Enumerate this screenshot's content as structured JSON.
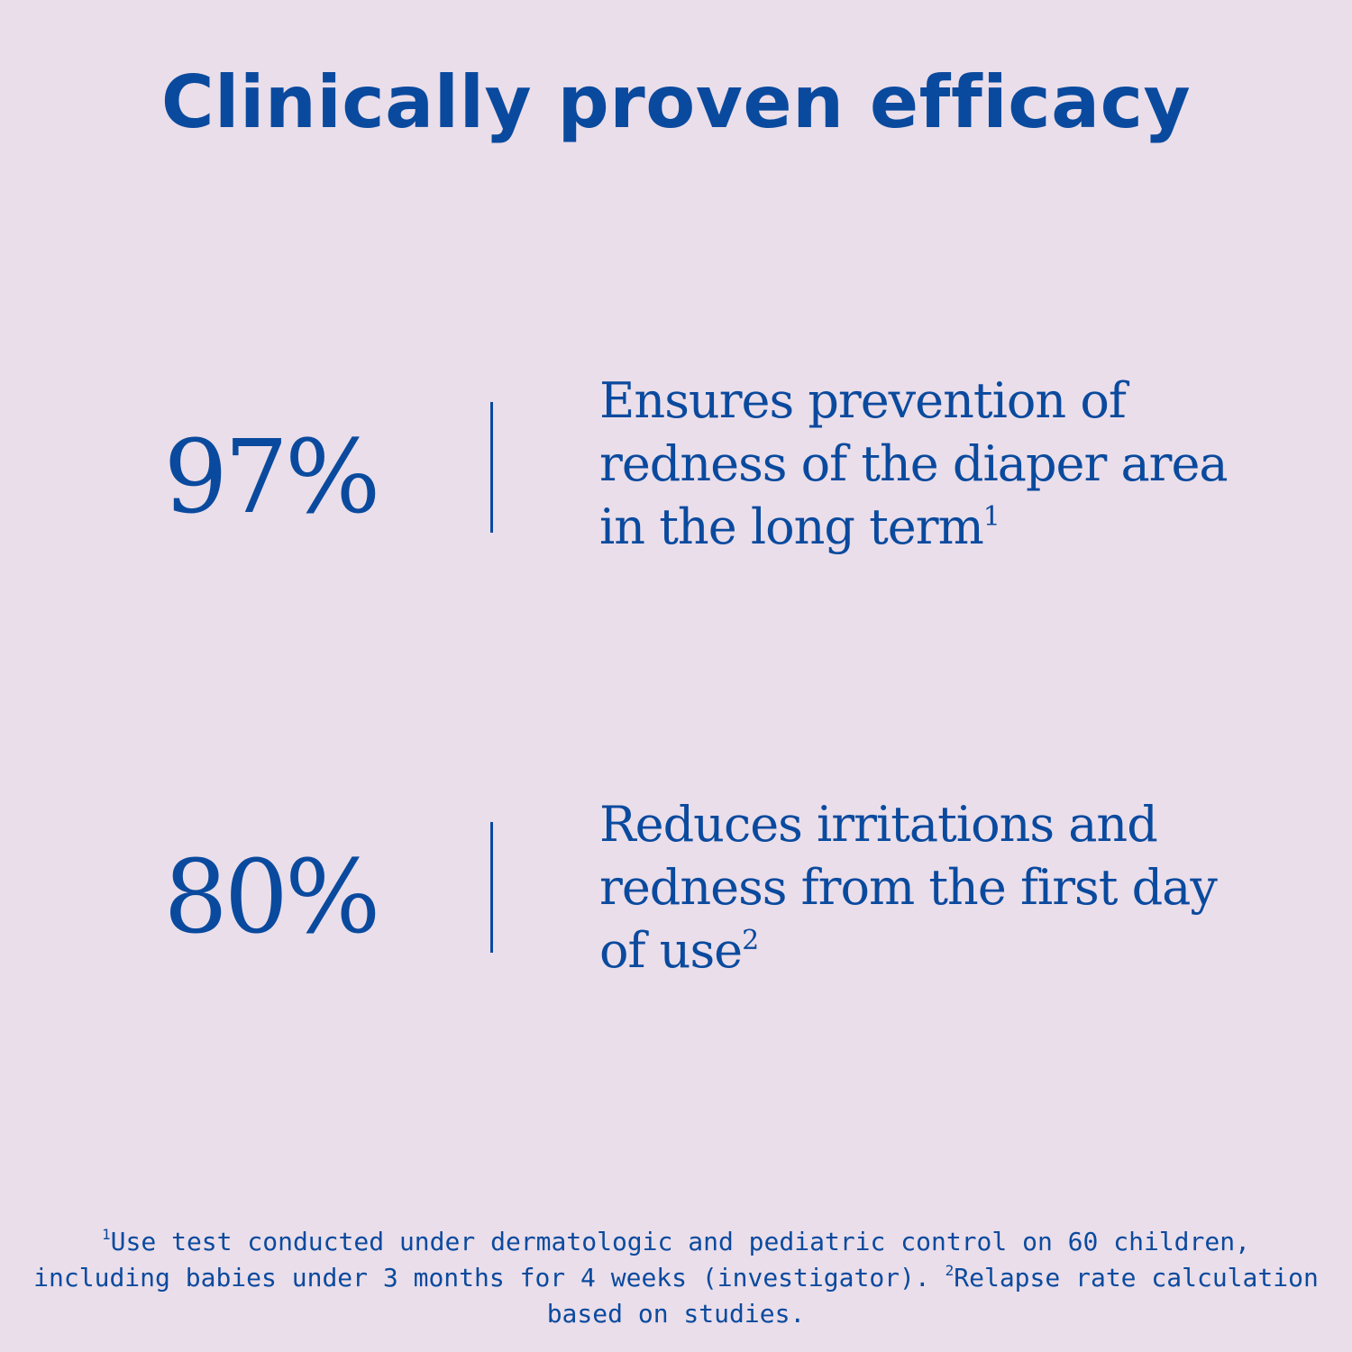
{
  "colors": {
    "background": "#eadeea",
    "accent": "#0a4a9e"
  },
  "title": "Clinically proven efficacy",
  "stats": [
    {
      "value": "97%",
      "description_lines": [
        "Ensures prevention of",
        "redness of the diaper area",
        "in the long term"
      ],
      "footnote_ref": "1"
    },
    {
      "value": "80%",
      "description_lines": [
        "Reduces irritations and",
        "redness from the first day",
        "of use"
      ],
      "footnote_ref": "2"
    }
  ],
  "footnotes": {
    "ref1": "1",
    "line1": "Use test conducted under dermatologic and pediatric control on 60 children,",
    "line2_a": "including babies under 3 months for 4 weeks (investigator). ",
    "ref2": "2",
    "line2_b": "Relapse rate calculation",
    "line3": "based on studies."
  }
}
